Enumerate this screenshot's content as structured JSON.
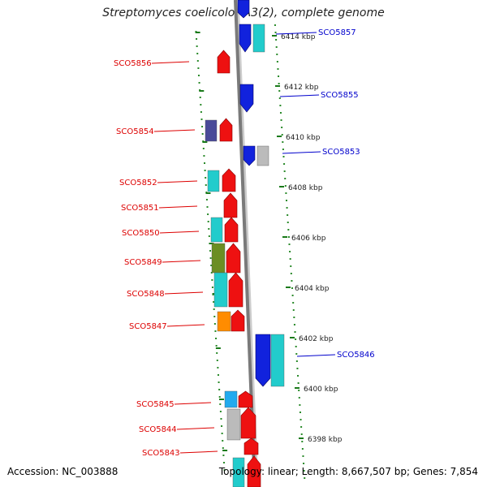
{
  "title": "Streptomyces coelicolor A3(2), complete genome",
  "footer": {
    "accession": "Accession: NC_003888",
    "summary": "Topology: linear; Length: 8,667,507 bp; Genes: 7,854"
  },
  "kbp_labels": [
    "6414 kbp",
    "6412 kbp",
    "6410 kbp",
    "6408 kbp",
    "6406 kbp",
    "6404 kbp",
    "6402 kbp",
    "6400 kbp",
    "6398 kbp"
  ],
  "colors": {
    "label_left": "#dd0000",
    "label_right": "#0000cc",
    "dots": "#2a8a2a",
    "backbone": "#7a7a7a",
    "red": "#ee1111",
    "blue": "#1122dd",
    "cyan": "#22cccc",
    "navy": "#4a4a99",
    "olive": "#6b8e23",
    "orange": "#ff8c00",
    "gray": "#bbbbbb",
    "sky": "#22aaee"
  },
  "genes_left": [
    {
      "label": "SCO5856",
      "color": "red",
      "shape": "arrow-up"
    },
    {
      "label": "SCO5854",
      "color": "red",
      "shape": "arrow-up",
      "companion": "navy"
    },
    {
      "label": "SCO5852",
      "color": "red",
      "shape": "arrow-up",
      "companion": "cyan"
    },
    {
      "label": "SCO5851",
      "color": "red",
      "shape": "arrow-up"
    },
    {
      "label": "SCO5850",
      "color": "red",
      "shape": "arrow-up",
      "companion": "cyan"
    },
    {
      "label": "SCO5849",
      "color": "red",
      "shape": "arrow-up",
      "companion": "olive"
    },
    {
      "label": "SCO5848",
      "color": "red",
      "shape": "arrow-up",
      "companion": "cyan"
    },
    {
      "label": "SCO5847",
      "color": "red",
      "shape": "arrow-up",
      "companion": "orange"
    },
    {
      "label": "SCO5845",
      "color": "red",
      "shape": "arrow-up",
      "companion": "sky"
    },
    {
      "label": "SCO5844",
      "color": "red",
      "shape": "arrow-up",
      "companion": "gray"
    },
    {
      "label": "SCO5843",
      "color": "red",
      "shape": "arrow-up"
    }
  ],
  "genes_right": [
    {
      "label": "SCO5857",
      "color": "blue",
      "shape": "arrow-down",
      "companion": "cyan"
    },
    {
      "label": "SCO5855",
      "color": "blue",
      "shape": "arrow-down"
    },
    {
      "label": "SCO5853",
      "color": "blue",
      "shape": "arrow-down",
      "companion": "gray"
    },
    {
      "label": "SCO5846",
      "color": "blue",
      "shape": "arrow-down",
      "companion": "cyan"
    }
  ]
}
